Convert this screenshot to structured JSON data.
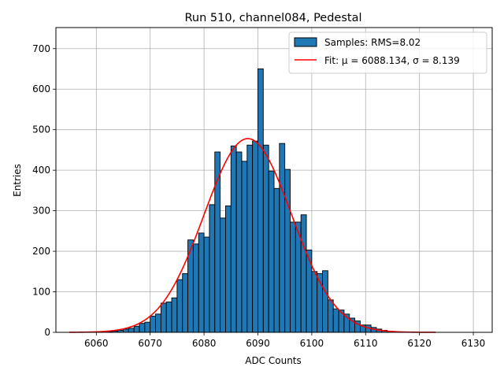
{
  "chart_data": {
    "type": "bar",
    "title": "Run 510, channel084, Pedestal",
    "xlabel": "ADC Counts",
    "ylabel": "Entries",
    "xlim": [
      6052.5,
      6133.5
    ],
    "ylim": [
      0,
      752
    ],
    "grid": true,
    "legend_position": "top-right",
    "x_ticks": [
      6060,
      6070,
      6080,
      6090,
      6100,
      6110,
      6120,
      6130
    ],
    "y_ticks": [
      0,
      100,
      200,
      300,
      400,
      500,
      600,
      700
    ],
    "bin_width": 1,
    "series": [
      {
        "name": "Samples: RMS=8.02",
        "type": "histogram",
        "color": "#1f77b4",
        "edgecolor": "#000000",
        "bins_start": [
          6058,
          6059,
          6060,
          6061,
          6062,
          6063,
          6064,
          6065,
          6066,
          6067,
          6068,
          6069,
          6070,
          6071,
          6072,
          6073,
          6074,
          6075,
          6076,
          6077,
          6078,
          6079,
          6080,
          6081,
          6082,
          6083,
          6084,
          6085,
          6086,
          6087,
          6088,
          6089,
          6090,
          6091,
          6092,
          6093,
          6094,
          6095,
          6096,
          6097,
          6098,
          6099,
          6100,
          6101,
          6102,
          6103,
          6104,
          6105,
          6106,
          6107,
          6108,
          6109,
          6110,
          6111,
          6112,
          6113,
          6114,
          6115,
          6116,
          6117,
          6118
        ],
        "values": [
          0,
          0,
          1,
          1,
          2,
          3,
          5,
          8,
          10,
          15,
          22,
          25,
          40,
          45,
          72,
          75,
          85,
          130,
          145,
          228,
          218,
          245,
          235,
          315,
          445,
          282,
          312,
          460,
          445,
          422,
          462,
          472,
          650,
          462,
          398,
          355,
          466,
          402,
          272,
          272,
          290,
          203,
          150,
          145,
          152,
          80,
          58,
          55,
          45,
          35,
          28,
          18,
          18,
          12,
          8,
          5,
          3,
          2,
          1,
          1,
          0
        ]
      },
      {
        "name": "Fit: μ = 6088.134, σ = 8.139",
        "type": "line",
        "color": "#ff0000",
        "mu": 6088.134,
        "sigma": 8.139,
        "amplitude": 478,
        "x_range": [
          6055,
          6123
        ]
      }
    ]
  }
}
